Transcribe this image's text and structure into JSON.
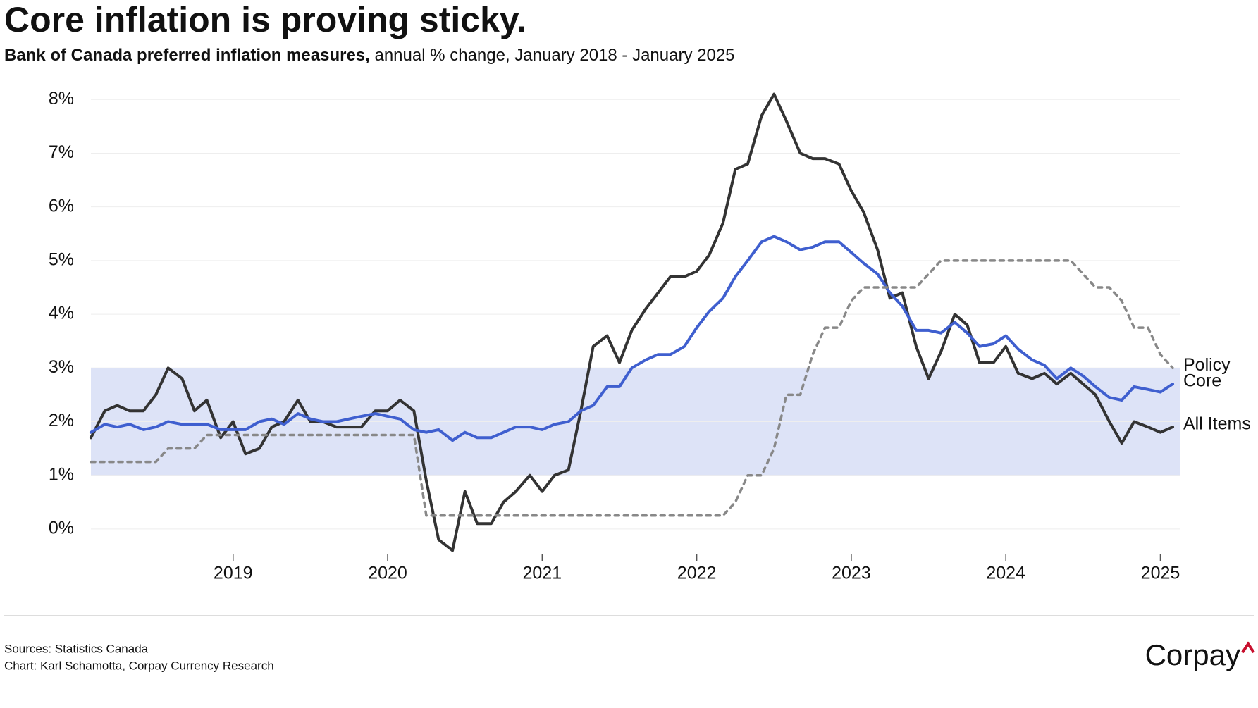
{
  "chart_data": {
    "type": "line",
    "title": "Core inflation is proving sticky.",
    "subtitle_bold": "Bank of Canada preferred inflation measures,",
    "subtitle": "annual % change, January 2018 - January 2025",
    "x": [
      2018.08,
      2018.17,
      2018.25,
      2018.33,
      2018.42,
      2018.5,
      2018.58,
      2018.67,
      2018.75,
      2018.83,
      2018.92,
      2019.0,
      2019.08,
      2019.17,
      2019.25,
      2019.33,
      2019.42,
      2019.5,
      2019.58,
      2019.67,
      2019.75,
      2019.83,
      2019.92,
      2020.0,
      2020.08,
      2020.17,
      2020.25,
      2020.33,
      2020.42,
      2020.5,
      2020.58,
      2020.67,
      2020.75,
      2020.83,
      2020.92,
      2021.0,
      2021.08,
      2021.17,
      2021.25,
      2021.33,
      2021.42,
      2021.5,
      2021.58,
      2021.67,
      2021.75,
      2021.83,
      2021.92,
      2022.0,
      2022.08,
      2022.17,
      2022.25,
      2022.33,
      2022.42,
      2022.5,
      2022.58,
      2022.67,
      2022.75,
      2022.83,
      2022.92,
      2023.0,
      2023.08,
      2023.17,
      2023.25,
      2023.33,
      2023.42,
      2023.5,
      2023.58,
      2023.67,
      2023.75,
      2023.83,
      2023.92,
      2024.0,
      2024.08,
      2024.17,
      2024.25,
      2024.33,
      2024.42,
      2024.5,
      2024.58,
      2024.67,
      2024.75,
      2024.83,
      2024.92,
      2025.0,
      2025.08
    ],
    "series": [
      {
        "name": "All Items",
        "color": "#333333",
        "dashed": false,
        "values": [
          1.7,
          2.2,
          2.3,
          2.2,
          2.2,
          2.5,
          3.0,
          2.8,
          2.2,
          2.4,
          1.7,
          2.0,
          1.4,
          1.5,
          1.9,
          2.0,
          2.4,
          2.0,
          2.0,
          1.9,
          1.9,
          1.9,
          2.2,
          2.2,
          2.4,
          2.2,
          0.9,
          -0.2,
          -0.4,
          0.7,
          0.1,
          0.1,
          0.5,
          0.7,
          1.0,
          0.7,
          1.0,
          1.1,
          2.2,
          3.4,
          3.6,
          3.1,
          3.7,
          4.1,
          4.4,
          4.7,
          4.7,
          4.8,
          5.1,
          5.7,
          6.7,
          6.8,
          7.7,
          8.1,
          7.6,
          7.0,
          6.9,
          6.9,
          6.8,
          6.3,
          5.9,
          5.2,
          4.3,
          4.4,
          3.4,
          2.8,
          3.3,
          4.0,
          3.8,
          3.1,
          3.1,
          3.4,
          2.9,
          2.8,
          2.9,
          2.7,
          2.9,
          2.7,
          2.5,
          2.0,
          1.6,
          2.0,
          1.9,
          1.8,
          1.9
        ]
      },
      {
        "name": "Core",
        "color": "#3f5fcf",
        "dashed": false,
        "values": [
          1.8,
          1.95,
          1.9,
          1.95,
          1.85,
          1.9,
          2.0,
          1.95,
          1.95,
          1.95,
          1.85,
          1.85,
          1.85,
          2.0,
          2.05,
          1.95,
          2.15,
          2.05,
          2.0,
          2.0,
          2.05,
          2.1,
          2.15,
          2.1,
          2.05,
          1.85,
          1.8,
          1.85,
          1.65,
          1.8,
          1.7,
          1.7,
          1.8,
          1.9,
          1.9,
          1.85,
          1.95,
          2.0,
          2.2,
          2.3,
          2.65,
          2.65,
          3.0,
          3.15,
          3.25,
          3.25,
          3.4,
          3.75,
          4.05,
          4.3,
          4.7,
          5.0,
          5.35,
          5.45,
          5.35,
          5.2,
          5.25,
          5.35,
          5.35,
          5.15,
          4.95,
          4.75,
          4.4,
          4.15,
          3.7,
          3.7,
          3.65,
          3.85,
          3.65,
          3.4,
          3.45,
          3.6,
          3.35,
          3.15,
          3.05,
          2.8,
          3.0,
          2.85,
          2.65,
          2.45,
          2.4,
          2.65,
          2.6,
          2.55,
          2.7
        ]
      },
      {
        "name": "Policy",
        "color": "#888888",
        "dashed": true,
        "values": [
          1.25,
          1.25,
          1.25,
          1.25,
          1.25,
          1.25,
          1.5,
          1.5,
          1.5,
          1.75,
          1.75,
          1.75,
          1.75,
          1.75,
          1.75,
          1.75,
          1.75,
          1.75,
          1.75,
          1.75,
          1.75,
          1.75,
          1.75,
          1.75,
          1.75,
          1.75,
          0.25,
          0.25,
          0.25,
          0.25,
          0.25,
          0.25,
          0.25,
          0.25,
          0.25,
          0.25,
          0.25,
          0.25,
          0.25,
          0.25,
          0.25,
          0.25,
          0.25,
          0.25,
          0.25,
          0.25,
          0.25,
          0.25,
          0.25,
          0.25,
          0.5,
          1.0,
          1.0,
          1.5,
          2.5,
          2.5,
          3.25,
          3.75,
          3.75,
          4.25,
          4.5,
          4.5,
          4.5,
          4.5,
          4.5,
          4.75,
          5,
          5,
          5,
          5,
          5,
          5,
          5,
          5,
          5,
          5,
          5,
          4.75,
          4.5,
          4.5,
          4.25,
          3.75,
          3.75,
          3.25,
          3.0
        ]
      }
    ],
    "target_band": [
      1,
      3
    ],
    "band_color": "#dde3f7",
    "xlim": [
      2018.08,
      2025.13
    ],
    "xticks": [
      2019,
      2020,
      2021,
      2022,
      2023,
      2024,
      2025
    ],
    "ylim": [
      -0.5,
      8.2
    ],
    "yticks": [
      {
        "value": 0,
        "label": "0%"
      },
      {
        "value": 1,
        "label": "1%"
      },
      {
        "value": 2,
        "label": "2%"
      },
      {
        "value": 3,
        "label": "3%"
      },
      {
        "value": 4,
        "label": "4%"
      },
      {
        "value": 5,
        "label": "5%"
      },
      {
        "value": 6,
        "label": "6%"
      },
      {
        "value": 7,
        "label": "7%"
      },
      {
        "value": 8,
        "label": "8%"
      }
    ],
    "grid": true,
    "sources": "Sources: Statistics Canada",
    "credit": "Chart: Karl Schamotta, Corpay Currency Research",
    "logo": "Corpay"
  }
}
